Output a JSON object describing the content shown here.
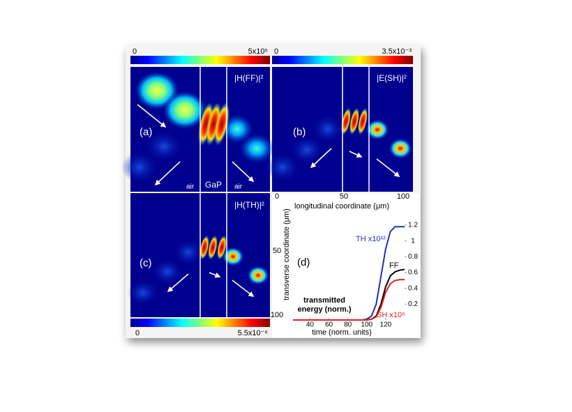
{
  "colorbars": [
    {
      "min": "0",
      "max": "5x10⁵"
    },
    {
      "min": "0",
      "max": "3.5x10⁻³"
    },
    {
      "min": "0",
      "max": "5.5x10⁻⁶"
    }
  ],
  "panels": [
    {
      "label": "(a)",
      "field": "|H(FF)|²",
      "regions": [
        "air",
        "GaP",
        "air"
      ]
    },
    {
      "label": "(b)",
      "field": "|E(SH)|²"
    },
    {
      "label": "(c)",
      "field": "|H(TH)|²"
    }
  ],
  "axes": {
    "longitudinal": {
      "label": "longitudinal coordinate (μm)",
      "ticks": [
        "0",
        "50",
        "100"
      ]
    },
    "transverse": {
      "label": "transverse coordinate (μm)",
      "ticks": [
        "50",
        "100"
      ]
    }
  },
  "chart_data": {
    "type": "line",
    "label": "(d)",
    "annotation": [
      "transmitted",
      "energy (norm.)"
    ],
    "xlabel": "time (norm. units)",
    "x": [
      22,
      40,
      60,
      80,
      95,
      100,
      105,
      110,
      115,
      120,
      125,
      130,
      135,
      140
    ],
    "series": [
      {
        "name": "TH x10¹²",
        "color": "#1f2fb0",
        "values": [
          0,
          0,
          0,
          0,
          0,
          0.01,
          0.05,
          0.2,
          0.55,
          0.9,
          1.12,
          1.18,
          1.18,
          1.18
        ]
      },
      {
        "name": "FF",
        "color": "#000000",
        "values": [
          0,
          0,
          0,
          0,
          0,
          0,
          0.01,
          0.05,
          0.2,
          0.42,
          0.56,
          0.61,
          0.63,
          0.64
        ]
      },
      {
        "name": "SH x10⁶",
        "color": "#e02020",
        "values": [
          0,
          0,
          0,
          0,
          0,
          0,
          0.01,
          0.04,
          0.16,
          0.35,
          0.46,
          0.5,
          0.51,
          0.51
        ]
      }
    ],
    "xlim": [
      22,
      140
    ],
    "ylim": [
      0,
      1.42
    ],
    "xticks": [
      40,
      60,
      80,
      100,
      120
    ],
    "yticks": [
      0.2,
      0.4,
      0.6,
      0.8,
      1,
      1.2
    ]
  }
}
